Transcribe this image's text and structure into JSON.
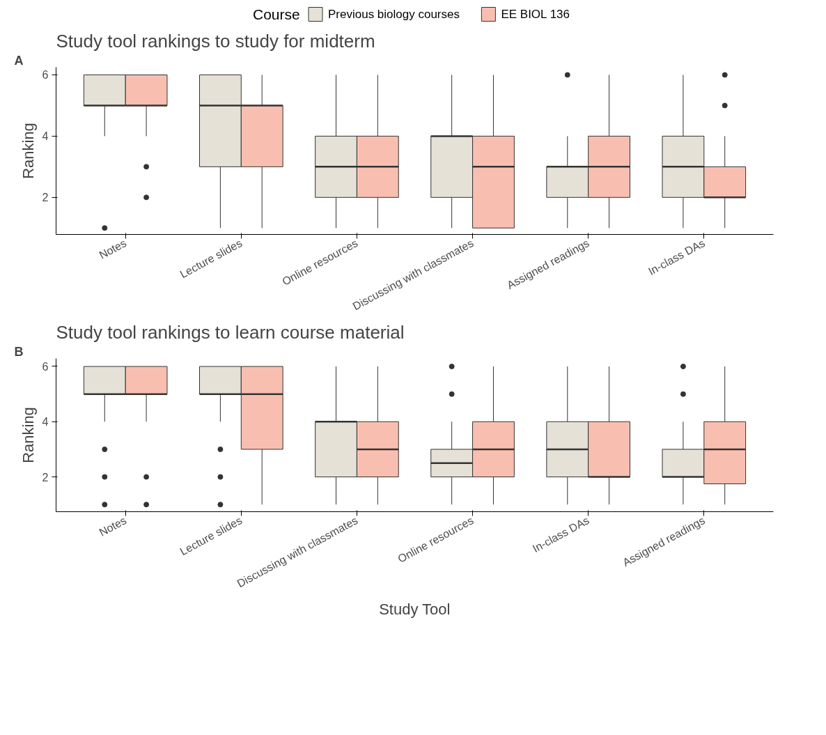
{
  "chart_data": [
    {
      "type": "box",
      "title": "Study tool rankings to study for midterm",
      "ylabel": "Ranking",
      "annotations": [
        "A"
      ],
      "legend_title": "Course",
      "legend": "top",
      "grid": false,
      "ylim": [
        0.79,
        6.25
      ],
      "yticks": [
        2,
        4,
        6
      ],
      "categories": [
        "Notes",
        "Lecture slides",
        "Online resources",
        "Discussing with classmates",
        "Assigned readings",
        "In-class DAs"
      ],
      "series": [
        {
          "name": "Previous biology courses",
          "color": "#e5e1d6",
          "boxes": [
            {
              "low": 4,
              "q1": 5,
              "median": 5,
              "q3": 6,
              "high": 6,
              "outliers": [
                1
              ]
            },
            {
              "low": 1,
              "q1": 3,
              "median": 5,
              "q3": 6,
              "high": 6
            },
            {
              "low": 1,
              "q1": 2,
              "median": 3,
              "q3": 4,
              "high": 6
            },
            {
              "low": 1,
              "q1": 2,
              "median": 4,
              "q3": 4,
              "high": 6
            },
            {
              "low": 1,
              "q1": 2,
              "median": 3,
              "q3": 3,
              "high": 4,
              "outliers": [
                6
              ]
            },
            {
              "low": 1,
              "q1": 2,
              "median": 3,
              "q3": 4,
              "high": 6
            }
          ]
        },
        {
          "name": "EE BIOL 136",
          "color": "#f8bfb0",
          "boxes": [
            {
              "low": 4,
              "q1": 5,
              "median": 5,
              "q3": 6,
              "high": 6,
              "outliers": [
                3,
                2
              ]
            },
            {
              "low": 1,
              "q1": 3,
              "median": 5,
              "q3": 5,
              "high": 6
            },
            {
              "low": 1,
              "q1": 2,
              "median": 3,
              "q3": 4,
              "high": 6
            },
            {
              "low": 1,
              "q1": 1,
              "median": 3,
              "q3": 4,
              "high": 6
            },
            {
              "low": 1,
              "q1": 2,
              "median": 3,
              "q3": 4,
              "high": 6
            },
            {
              "low": 1,
              "q1": 2,
              "median": 2,
              "q3": 3,
              "high": 4,
              "outliers": [
                6,
                5
              ]
            }
          ]
        }
      ]
    },
    {
      "type": "box",
      "title": "Study tool rankings to learn course material",
      "ylabel": "Ranking",
      "xlabel": "Study Tool",
      "annotations": [
        "B"
      ],
      "grid": false,
      "ylim": [
        0.74,
        6.29
      ],
      "yticks": [
        2,
        4,
        6
      ],
      "categories": [
        "Notes",
        "Lecture slides",
        "Discussing with classmates",
        "Online resources",
        "In-class DAs",
        "Assigned readings"
      ],
      "series": [
        {
          "color": "#e5e1d6",
          "boxes": [
            {
              "low": 4,
              "q1": 5,
              "median": 5,
              "q3": 6,
              "high": 6,
              "outliers": [
                3,
                2,
                1
              ]
            },
            {
              "low": 4,
              "q1": 5,
              "median": 5,
              "q3": 6,
              "high": 6,
              "outliers": [
                3,
                2,
                1
              ]
            },
            {
              "low": 1,
              "q1": 2,
              "median": 4,
              "q3": 4,
              "high": 6
            },
            {
              "low": 1,
              "q1": 2,
              "median": 2.5,
              "q3": 3,
              "high": 4,
              "outliers": [
                6,
                5
              ]
            },
            {
              "low": 1,
              "q1": 2,
              "median": 3,
              "q3": 4,
              "high": 6
            },
            {
              "low": 1,
              "q1": 2,
              "median": 2,
              "q3": 3,
              "high": 4,
              "outliers": [
                6,
                5
              ]
            }
          ]
        },
        {
          "color": "#f8bfb0",
          "boxes": [
            {
              "low": 4,
              "q1": 5,
              "median": 5,
              "q3": 6,
              "high": 6,
              "outliers": [
                2,
                1
              ]
            },
            {
              "low": 1,
              "q1": 3,
              "median": 5,
              "q3": 6,
              "high": 6
            },
            {
              "low": 1,
              "q1": 2,
              "median": 3,
              "q3": 4,
              "high": 6
            },
            {
              "low": 1,
              "q1": 2,
              "median": 3,
              "q3": 4,
              "high": 6
            },
            {
              "low": 1,
              "q1": 2,
              "median": 2,
              "q3": 4,
              "high": 6
            },
            {
              "low": 1,
              "q1": 1.75,
              "median": 3,
              "q3": 4,
              "high": 6
            }
          ]
        }
      ]
    }
  ]
}
